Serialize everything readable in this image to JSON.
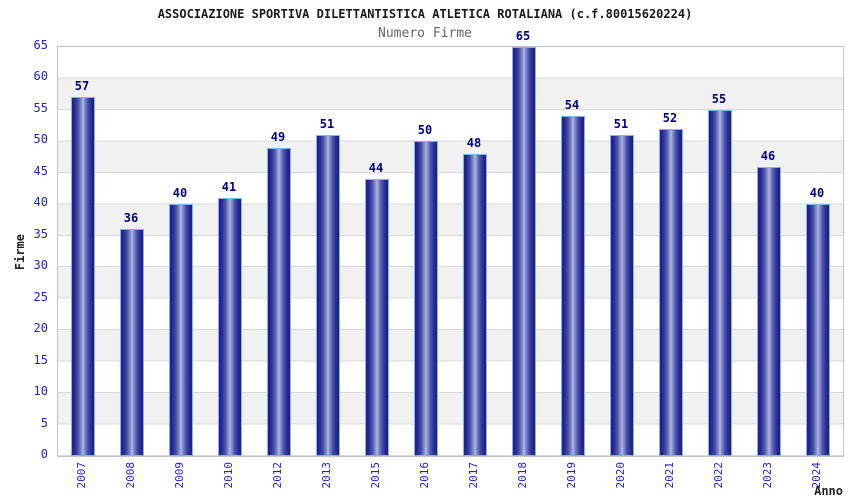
{
  "chart_data": {
    "type": "bar",
    "title": "ASSOCIAZIONE SPORTIVA DILETTANTISTICA ATLETICA ROTALIANA (c.f.80015620224)",
    "subtitle": "Numero Firme",
    "xlabel": "Anno",
    "ylabel": "Firme",
    "categories": [
      "2007",
      "2008",
      "2009",
      "2010",
      "2012",
      "2013",
      "2015",
      "2016",
      "2017",
      "2018",
      "2019",
      "2020",
      "2021",
      "2022",
      "2023",
      "2024"
    ],
    "values": [
      57,
      36,
      40,
      41,
      49,
      51,
      44,
      50,
      48,
      65,
      54,
      51,
      52,
      55,
      46,
      40
    ],
    "ylim": [
      0,
      65
    ],
    "ytick_step": 5,
    "grid": true,
    "legend_position": "none",
    "bar_value_labels_shown": true,
    "colors": {
      "bar_edge_dark": "#1e1e88",
      "bar_center_light": "#b2bae6",
      "bar_outline": "#7fb5e8",
      "tick_label_blue": "#2222cc",
      "value_label_navy": "#000080",
      "title_color": "#1a1a1a",
      "subtitle_color": "#666666",
      "axis_label_color": "#222222",
      "band_gray": "#f1f1f1",
      "grid_line": "#d9d9d9",
      "plot_border": "#c4c4c4",
      "background": "#ffffff"
    }
  }
}
